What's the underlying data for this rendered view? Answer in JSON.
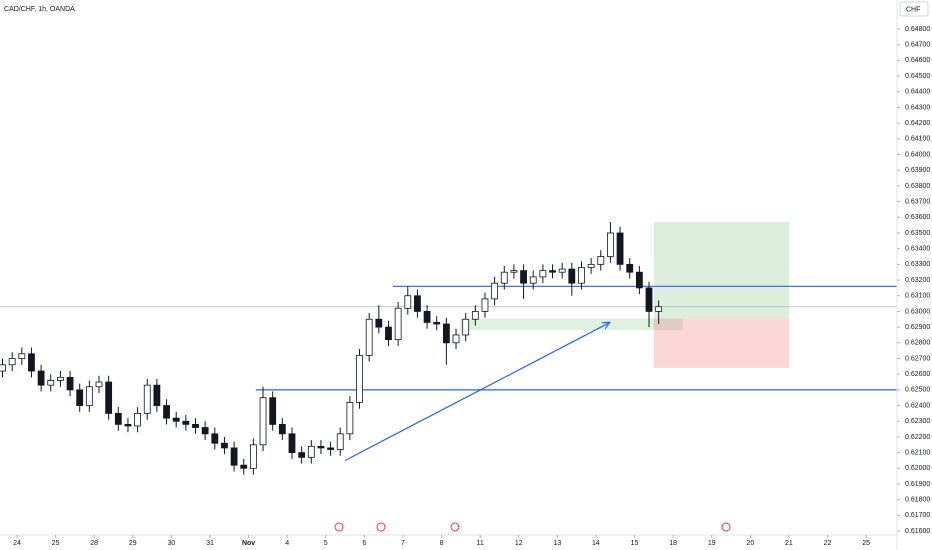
{
  "chart_data": {
    "type": "candlestick",
    "title": "CAD/CHF, 1h, OANDA",
    "currency": "CHF",
    "xlim": [
      -0.44,
      22.8
    ],
    "ylim": [
      0.61575,
      0.64985
    ],
    "xticks": [
      {
        "value": 0,
        "label": "24"
      },
      {
        "value": 1,
        "label": "25"
      },
      {
        "value": 2,
        "label": "28"
      },
      {
        "value": 3,
        "label": "29"
      },
      {
        "value": 4,
        "label": "30"
      },
      {
        "value": 5,
        "label": "31"
      },
      {
        "value": 6,
        "label": "Nov"
      },
      {
        "value": 7,
        "label": "4"
      },
      {
        "value": 8,
        "label": "5"
      },
      {
        "value": 9,
        "label": "6"
      },
      {
        "value": 10,
        "label": "7"
      },
      {
        "value": 11,
        "label": "8"
      },
      {
        "value": 12,
        "label": "11"
      },
      {
        "value": 13,
        "label": "12"
      },
      {
        "value": 14,
        "label": "13"
      },
      {
        "value": 15,
        "label": "14"
      },
      {
        "value": 16,
        "label": "15"
      },
      {
        "value": 17,
        "label": "18"
      },
      {
        "value": 18,
        "label": "19"
      },
      {
        "value": 19,
        "label": "20"
      },
      {
        "value": 20,
        "label": "21"
      },
      {
        "value": 21,
        "label": "22"
      },
      {
        "value": 22,
        "label": "25"
      }
    ],
    "yticks": [
      {
        "value": 0.648,
        "label": "0.64800"
      },
      {
        "value": 0.647,
        "label": "0.64700"
      },
      {
        "value": 0.646,
        "label": "0.64600"
      },
      {
        "value": 0.645,
        "label": "0.64500"
      },
      {
        "value": 0.644,
        "label": "0.64400"
      },
      {
        "value": 0.643,
        "label": "0.64300"
      },
      {
        "value": 0.642,
        "label": "0.64200"
      },
      {
        "value": 0.641,
        "label": "0.64100"
      },
      {
        "value": 0.64,
        "label": "0.64000"
      },
      {
        "value": 0.639,
        "label": "0.63900"
      },
      {
        "value": 0.638,
        "label": "0.63800"
      },
      {
        "value": 0.637,
        "label": "0.63700"
      },
      {
        "value": 0.636,
        "label": "0.63600"
      },
      {
        "value": 0.635,
        "label": "0.63500"
      },
      {
        "value": 0.634,
        "label": "0.63400"
      },
      {
        "value": 0.633,
        "label": "0.63300"
      },
      {
        "value": 0.632,
        "label": "0.63200"
      },
      {
        "value": 0.631,
        "label": "0.63100"
      },
      {
        "value": 0.63,
        "label": "0.63000"
      },
      {
        "value": 0.629,
        "label": "0.62900"
      },
      {
        "value": 0.628,
        "label": "0.62800"
      },
      {
        "value": 0.627,
        "label": "0.62700"
      },
      {
        "value": 0.626,
        "label": "0.62600"
      },
      {
        "value": 0.625,
        "label": "0.62500"
      },
      {
        "value": 0.624,
        "label": "0.62400"
      },
      {
        "value": 0.623,
        "label": "0.62300"
      },
      {
        "value": 0.622,
        "label": "0.62200"
      },
      {
        "value": 0.621,
        "label": "0.62100"
      },
      {
        "value": 0.62,
        "label": "0.62000"
      },
      {
        "value": 0.619,
        "label": "0.61900"
      },
      {
        "value": 0.618,
        "label": "0.61800"
      },
      {
        "value": 0.617,
        "label": "0.61700"
      },
      {
        "value": 0.616,
        "label": "0.61600"
      }
    ],
    "up_color": "#ffffff",
    "down_color": "#131722",
    "x": [
      -0.375,
      -0.125,
      0.125,
      0.375,
      0.625,
      0.875,
      1.125,
      1.375,
      1.625,
      1.875,
      2.125,
      2.375,
      2.625,
      2.875,
      3.125,
      3.375,
      3.625,
      3.875,
      4.125,
      4.375,
      4.625,
      4.875,
      5.125,
      5.375,
      5.625,
      5.875,
      6.125,
      6.375,
      6.625,
      6.875,
      7.125,
      7.375,
      7.625,
      7.875,
      8.125,
      8.375,
      8.625,
      8.875,
      9.125,
      9.375,
      9.625,
      9.875,
      10.125,
      10.375,
      10.625,
      10.875,
      11.125,
      11.375,
      11.625,
      11.875,
      12.125,
      12.375,
      12.625,
      12.875,
      13.125,
      13.375,
      13.625,
      13.875,
      14.125,
      14.375,
      14.625,
      14.875,
      15.125,
      15.375,
      15.625,
      15.875,
      16.125,
      16.375,
      16.625
    ],
    "open": [
      0.6262,
      0.6266,
      0.627,
      0.6273,
      0.6262,
      0.6253,
      0.6256,
      0.6258,
      0.625,
      0.624,
      0.6252,
      0.6255,
      0.6235,
      0.6228,
      0.6227,
      0.6235,
      0.6253,
      0.624,
      0.6232,
      0.623,
      0.6228,
      0.6226,
      0.6222,
      0.6216,
      0.6213,
      0.6202,
      0.62,
      0.6215,
      0.6245,
      0.6228,
      0.6222,
      0.621,
      0.6207,
      0.6214,
      0.6213,
      0.6212,
      0.6222,
      0.6242,
      0.6272,
      0.6295,
      0.629,
      0.6282,
      0.6302,
      0.631,
      0.63,
      0.6293,
      0.6292,
      0.628,
      0.6285,
      0.6295,
      0.63,
      0.6308,
      0.6318,
      0.6325,
      0.6326,
      0.6318,
      0.6322,
      0.6326,
      0.6325,
      0.6327,
      0.6318,
      0.6328,
      0.633,
      0.6335,
      0.635,
      0.633,
      0.6325,
      0.6315,
      0.63
    ],
    "high": [
      0.627,
      0.6274,
      0.6277,
      0.6277,
      0.6266,
      0.626,
      0.6262,
      0.6262,
      0.6254,
      0.6256,
      0.6259,
      0.6259,
      0.6239,
      0.6232,
      0.6239,
      0.6257,
      0.6257,
      0.6244,
      0.6236,
      0.6234,
      0.6232,
      0.623,
      0.6226,
      0.622,
      0.6217,
      0.6206,
      0.6219,
      0.6252,
      0.6249,
      0.6232,
      0.6226,
      0.6214,
      0.6218,
      0.6218,
      0.6217,
      0.6226,
      0.6246,
      0.6276,
      0.6299,
      0.6304,
      0.6294,
      0.6306,
      0.6316,
      0.6314,
      0.6304,
      0.6297,
      0.6296,
      0.6289,
      0.6299,
      0.6304,
      0.6312,
      0.6322,
      0.6329,
      0.633,
      0.633,
      0.6326,
      0.633,
      0.633,
      0.6331,
      0.6331,
      0.6332,
      0.6334,
      0.6339,
      0.6357,
      0.6354,
      0.6334,
      0.6329,
      0.6319,
      0.6307
    ],
    "low": [
      0.6258,
      0.6262,
      0.6266,
      0.6258,
      0.6249,
      0.6249,
      0.6252,
      0.6246,
      0.6236,
      0.6236,
      0.6248,
      0.6231,
      0.6224,
      0.6223,
      0.6223,
      0.6231,
      0.6236,
      0.6228,
      0.6226,
      0.6224,
      0.6222,
      0.6218,
      0.6212,
      0.6209,
      0.6198,
      0.6196,
      0.6196,
      0.6211,
      0.6224,
      0.6218,
      0.6206,
      0.6203,
      0.6203,
      0.6209,
      0.6208,
      0.6208,
      0.6218,
      0.6238,
      0.6268,
      0.6286,
      0.6278,
      0.6278,
      0.6298,
      0.6296,
      0.6289,
      0.6288,
      0.6266,
      0.6276,
      0.6281,
      0.6291,
      0.6296,
      0.6304,
      0.6314,
      0.6321,
      0.6308,
      0.6314,
      0.6318,
      0.6321,
      0.6321,
      0.631,
      0.6314,
      0.6324,
      0.6326,
      0.6331,
      0.6326,
      0.6321,
      0.6311,
      0.629,
      0.6292
    ],
    "close": [
      0.6266,
      0.627,
      0.6273,
      0.6262,
      0.6253,
      0.6256,
      0.6258,
      0.625,
      0.624,
      0.6252,
      0.6255,
      0.6235,
      0.6228,
      0.6227,
      0.6235,
      0.6253,
      0.624,
      0.6232,
      0.623,
      0.6228,
      0.6226,
      0.6222,
      0.6216,
      0.6213,
      0.6202,
      0.62,
      0.6215,
      0.6245,
      0.6228,
      0.6222,
      0.621,
      0.6207,
      0.6214,
      0.6213,
      0.6212,
      0.6222,
      0.6242,
      0.6272,
      0.6295,
      0.629,
      0.6282,
      0.6302,
      0.631,
      0.63,
      0.6293,
      0.6292,
      0.628,
      0.6285,
      0.6295,
      0.63,
      0.6308,
      0.6318,
      0.6325,
      0.6326,
      0.6318,
      0.6322,
      0.6326,
      0.6325,
      0.6327,
      0.6318,
      0.6328,
      0.633,
      0.6335,
      0.635,
      0.633,
      0.6325,
      0.6315,
      0.63,
      0.6303
    ],
    "levels": [
      {
        "price": 0.6316,
        "from": 9.74,
        "color": "#2962ff"
      },
      {
        "price": 0.625,
        "from": 6.19,
        "color": "#2962ff"
      }
    ],
    "zone": {
      "x0": 11.47,
      "x1": 17.25,
      "top": 0.62955,
      "bottom": 0.6288
    },
    "arrow": {
      "x0": 8.5,
      "y0": 0.6205,
      "x1": 15.36,
      "y1": 0.6293,
      "color": "#2962ff"
    },
    "position": {
      "x0": 16.5,
      "x1": 20,
      "entry": 0.62955,
      "target": 0.6357,
      "stop": 0.6264
    }
  }
}
